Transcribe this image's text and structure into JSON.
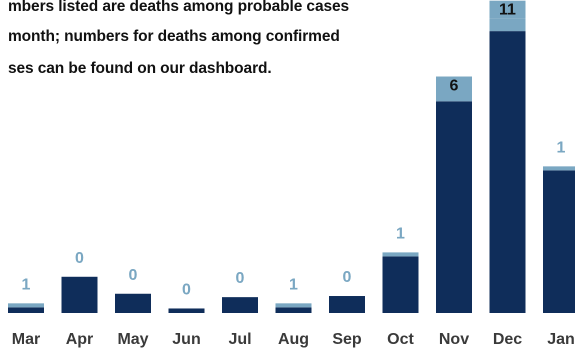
{
  "note": {
    "line1": "mbers listed are deaths among probable cases",
    "line2": "month; numbers for deaths among confirmed",
    "line3": "ses can be found on our dashboard."
  },
  "colors": {
    "confirmed": "#0f2d5a",
    "probable": "#7aa7c2",
    "label_light": "#7aa7c2",
    "label_dark": "#111111",
    "axis_text": "#3a3a3a"
  },
  "chart_data": {
    "type": "bar",
    "stacked": true,
    "categories": [
      "Mar",
      "Apr",
      "May",
      "Jun",
      "Jul",
      "Aug",
      "Sep",
      "Oct",
      "Nov",
      "Dec",
      "Jan"
    ],
    "series": [
      {
        "values": [
          5,
          32,
          17,
          4,
          14,
          5,
          15,
          50,
          187,
          249,
          126
        ]
      },
      {
        "values": [
          1,
          0,
          0,
          0,
          0,
          1,
          0,
          1,
          6,
          11,
          1
        ]
      }
    ],
    "data_labels": [
      "1",
      "0",
      "0",
      "0",
      "0",
      "1",
      "0",
      "1",
      "6",
      "11",
      "1"
    ],
    "ylim": [
      0,
      265
    ],
    "grid": false
  }
}
